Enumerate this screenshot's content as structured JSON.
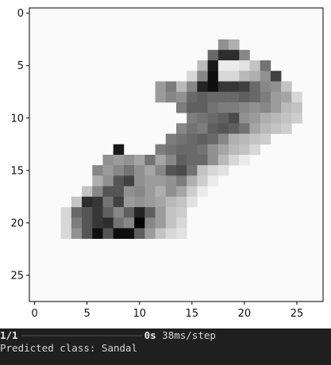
{
  "chart_data": {
    "type": "heatmap",
    "colormap": "gray_r",
    "rows": 28,
    "cols": 28,
    "xlim": [
      -0.5,
      27.5
    ],
    "ylim": [
      27.5,
      -0.5
    ],
    "xticks": [
      0,
      5,
      10,
      15,
      20,
      25
    ],
    "yticks": [
      0,
      5,
      10,
      15,
      20,
      25
    ],
    "xtick_labels": [
      "0",
      "5",
      "10",
      "15",
      "20",
      "25"
    ],
    "ytick_labels": [
      "0",
      "5",
      "10",
      "15",
      "20",
      "25"
    ],
    "background_value": 5,
    "cells": [
      [
        3,
        18,
        110
      ],
      [
        3,
        19,
        80
      ],
      [
        4,
        17,
        150
      ],
      [
        4,
        18,
        210
      ],
      [
        4,
        19,
        210
      ],
      [
        4,
        20,
        120
      ],
      [
        5,
        16,
        70
      ],
      [
        5,
        17,
        230
      ],
      [
        5,
        18,
        20
      ],
      [
        5,
        19,
        20
      ],
      [
        5,
        20,
        30
      ],
      [
        5,
        21,
        60
      ],
      [
        5,
        22,
        140
      ],
      [
        6,
        15,
        40
      ],
      [
        6,
        16,
        120
      ],
      [
        6,
        17,
        240
      ],
      [
        6,
        18,
        40
      ],
      [
        6,
        19,
        40
      ],
      [
        6,
        20,
        70
      ],
      [
        6,
        21,
        80
      ],
      [
        6,
        22,
        110
      ],
      [
        6,
        23,
        190
      ],
      [
        7,
        12,
        100
      ],
      [
        7,
        13,
        130
      ],
      [
        7,
        14,
        70
      ],
      [
        7,
        15,
        120
      ],
      [
        7,
        16,
        220
      ],
      [
        7,
        17,
        240
      ],
      [
        7,
        18,
        200
      ],
      [
        7,
        19,
        200
      ],
      [
        7,
        20,
        190
      ],
      [
        7,
        21,
        150
      ],
      [
        7,
        22,
        120
      ],
      [
        7,
        23,
        110
      ],
      [
        7,
        24,
        60
      ],
      [
        8,
        12,
        100
      ],
      [
        8,
        13,
        120
      ],
      [
        8,
        14,
        110
      ],
      [
        8,
        15,
        150
      ],
      [
        8,
        16,
        160
      ],
      [
        8,
        17,
        150
      ],
      [
        8,
        18,
        150
      ],
      [
        8,
        19,
        150
      ],
      [
        8,
        20,
        160
      ],
      [
        8,
        21,
        150
      ],
      [
        8,
        22,
        130
      ],
      [
        8,
        23,
        100
      ],
      [
        8,
        24,
        90
      ],
      [
        8,
        25,
        40
      ],
      [
        9,
        14,
        130
      ],
      [
        9,
        15,
        160
      ],
      [
        9,
        16,
        160
      ],
      [
        9,
        17,
        140
      ],
      [
        9,
        18,
        130
      ],
      [
        9,
        19,
        130
      ],
      [
        9,
        20,
        120
      ],
      [
        9,
        21,
        110
      ],
      [
        9,
        22,
        120
      ],
      [
        9,
        23,
        100
      ],
      [
        9,
        24,
        70
      ],
      [
        9,
        25,
        60
      ],
      [
        10,
        15,
        130
      ],
      [
        10,
        16,
        140
      ],
      [
        10,
        17,
        150
      ],
      [
        10,
        18,
        160
      ],
      [
        10,
        19,
        180
      ],
      [
        10,
        20,
        110
      ],
      [
        10,
        21,
        100
      ],
      [
        10,
        22,
        80
      ],
      [
        10,
        23,
        70
      ],
      [
        10,
        24,
        60
      ],
      [
        10,
        25,
        50
      ],
      [
        11,
        14,
        120
      ],
      [
        11,
        15,
        140
      ],
      [
        11,
        16,
        130
      ],
      [
        11,
        17,
        160
      ],
      [
        11,
        18,
        170
      ],
      [
        11,
        19,
        160
      ],
      [
        11,
        20,
        140
      ],
      [
        11,
        21,
        90
      ],
      [
        11,
        22,
        70
      ],
      [
        11,
        23,
        60
      ],
      [
        11,
        24,
        50
      ],
      [
        12,
        13,
        130
      ],
      [
        12,
        14,
        140
      ],
      [
        12,
        15,
        150
      ],
      [
        12,
        16,
        160
      ],
      [
        12,
        17,
        150
      ],
      [
        12,
        18,
        120
      ],
      [
        12,
        19,
        80
      ],
      [
        12,
        20,
        70
      ],
      [
        12,
        21,
        60
      ],
      [
        12,
        22,
        50
      ],
      [
        13,
        8,
        230
      ],
      [
        13,
        12,
        130
      ],
      [
        13,
        13,
        140
      ],
      [
        13,
        14,
        150
      ],
      [
        13,
        15,
        150
      ],
      [
        13,
        16,
        140
      ],
      [
        13,
        17,
        110
      ],
      [
        13,
        18,
        90
      ],
      [
        13,
        19,
        70
      ],
      [
        13,
        20,
        60
      ],
      [
        13,
        21,
        40
      ],
      [
        14,
        7,
        110
      ],
      [
        14,
        8,
        100
      ],
      [
        14,
        9,
        110
      ],
      [
        14,
        10,
        90
      ],
      [
        14,
        11,
        140
      ],
      [
        14,
        12,
        90
      ],
      [
        14,
        13,
        120
      ],
      [
        14,
        14,
        160
      ],
      [
        14,
        15,
        150
      ],
      [
        14,
        16,
        150
      ],
      [
        14,
        17,
        110
      ],
      [
        14,
        18,
        70
      ],
      [
        14,
        19,
        40
      ],
      [
        14,
        20,
        20
      ],
      [
        15,
        6,
        120
      ],
      [
        15,
        7,
        100
      ],
      [
        15,
        8,
        120
      ],
      [
        15,
        9,
        140
      ],
      [
        15,
        10,
        110
      ],
      [
        15,
        11,
        90
      ],
      [
        15,
        12,
        120
      ],
      [
        15,
        13,
        170
      ],
      [
        15,
        14,
        180
      ],
      [
        15,
        15,
        140
      ],
      [
        15,
        16,
        60
      ],
      [
        15,
        17,
        40
      ],
      [
        15,
        18,
        30
      ],
      [
        16,
        6,
        80
      ],
      [
        16,
        7,
        110
      ],
      [
        16,
        8,
        170
      ],
      [
        16,
        9,
        190
      ],
      [
        16,
        10,
        110
      ],
      [
        16,
        11,
        100
      ],
      [
        16,
        12,
        100
      ],
      [
        16,
        13,
        110
      ],
      [
        16,
        14,
        130
      ],
      [
        16,
        15,
        80
      ],
      [
        16,
        16,
        50
      ],
      [
        16,
        17,
        20
      ],
      [
        17,
        5,
        60
      ],
      [
        17,
        6,
        120
      ],
      [
        17,
        7,
        170
      ],
      [
        17,
        8,
        170
      ],
      [
        17,
        9,
        110
      ],
      [
        17,
        10,
        120
      ],
      [
        17,
        11,
        100
      ],
      [
        17,
        12,
        80
      ],
      [
        17,
        13,
        110
      ],
      [
        17,
        14,
        90
      ],
      [
        17,
        15,
        50
      ],
      [
        17,
        16,
        20
      ],
      [
        18,
        4,
        60
      ],
      [
        18,
        5,
        210
      ],
      [
        18,
        6,
        200
      ],
      [
        18,
        7,
        140
      ],
      [
        18,
        8,
        190
      ],
      [
        18,
        9,
        100
      ],
      [
        18,
        10,
        110
      ],
      [
        18,
        11,
        100
      ],
      [
        18,
        12,
        90
      ],
      [
        18,
        13,
        70
      ],
      [
        18,
        14,
        60
      ],
      [
        18,
        15,
        30
      ],
      [
        19,
        3,
        40
      ],
      [
        19,
        4,
        150
      ],
      [
        19,
        5,
        170
      ],
      [
        19,
        6,
        200
      ],
      [
        19,
        7,
        160
      ],
      [
        19,
        8,
        120
      ],
      [
        19,
        9,
        160
      ],
      [
        19,
        10,
        220
      ],
      [
        19,
        11,
        160
      ],
      [
        19,
        12,
        100
      ],
      [
        19,
        13,
        60
      ],
      [
        19,
        14,
        50
      ],
      [
        20,
        3,
        40
      ],
      [
        20,
        4,
        130
      ],
      [
        20,
        5,
        170
      ],
      [
        20,
        6,
        200
      ],
      [
        20,
        7,
        210
      ],
      [
        20,
        8,
        140
      ],
      [
        20,
        9,
        120
      ],
      [
        20,
        10,
        250
      ],
      [
        20,
        11,
        120
      ],
      [
        20,
        12,
        100
      ],
      [
        20,
        13,
        60
      ],
      [
        20,
        14,
        40
      ],
      [
        21,
        3,
        40
      ],
      [
        21,
        4,
        110
      ],
      [
        21,
        5,
        170
      ],
      [
        21,
        6,
        240
      ],
      [
        21,
        7,
        170
      ],
      [
        21,
        8,
        240
      ],
      [
        21,
        9,
        240
      ],
      [
        21,
        10,
        160
      ],
      [
        21,
        11,
        100
      ],
      [
        21,
        12,
        60
      ],
      [
        21,
        13,
        40
      ],
      [
        21,
        14,
        30
      ]
    ]
  },
  "console": {
    "progress_count": "1/1",
    "progress_fraction": 1.0,
    "progress_color": "#23d18b",
    "progress_time": "0s",
    "progress_rate": "38ms/step",
    "prediction_text": "Predicted class: Sandal"
  }
}
